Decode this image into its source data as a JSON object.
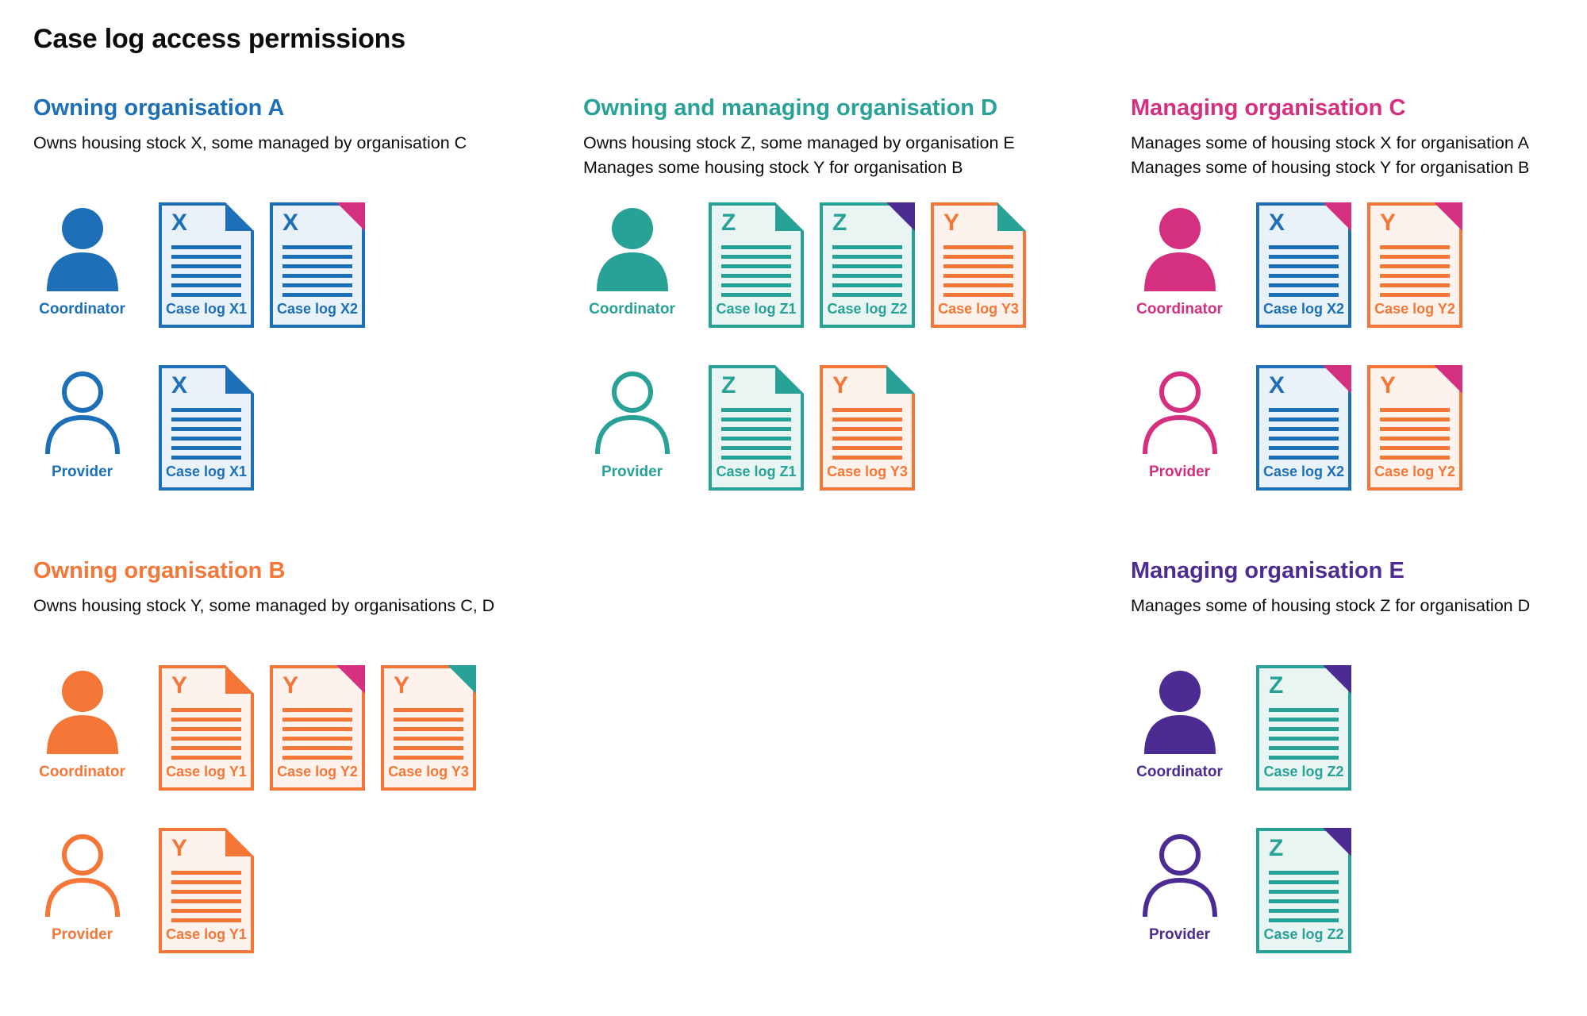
{
  "title": "Case log access permissions",
  "colors": {
    "text": "#0b0c0c",
    "blue": "#1d70b8",
    "teal": "#28a197",
    "pink": "#d5307f",
    "orange": "#f47738",
    "purple": "#4c2c92"
  },
  "tints": {
    "blue": "#eaf2f9",
    "teal": "#e9f5f3",
    "orange": "#fef3ec"
  },
  "persona_labels": {
    "coordinator": "Coordinator",
    "provider": "Provider"
  },
  "sections": [
    {
      "id": "owning-organisation-a",
      "heading": "Owning organisation A",
      "color": "blue",
      "band": 1,
      "col": 1,
      "description": [
        "Owns housing stock X, some managed by organisation C"
      ],
      "rows": [
        {
          "persona": {
            "label": "Coordinator",
            "style": "filled"
          },
          "docs": [
            {
              "letter": "X",
              "label": "Case log X1",
              "doc_color": "blue",
              "corner_color": "blue",
              "corner_style": "fold"
            },
            {
              "letter": "X",
              "label": "Case log X2",
              "doc_color": "blue",
              "corner_color": "pink",
              "corner_style": "solid"
            }
          ]
        },
        {
          "persona": {
            "label": "Provider",
            "style": "outline"
          },
          "docs": [
            {
              "letter": "X",
              "label": "Case log X1",
              "doc_color": "blue",
              "corner_color": "blue",
              "corner_style": "fold"
            }
          ]
        }
      ]
    },
    {
      "id": "owning-and-managing-organisation-d",
      "heading": "Owning and managing organisation D",
      "color": "teal",
      "band": 1,
      "col": 2,
      "description": [
        "Owns housing stock Z, some managed by organisation E",
        "Manages some housing stock Y for organisation B"
      ],
      "rows": [
        {
          "persona": {
            "label": "Coordinator",
            "style": "filled"
          },
          "docs": [
            {
              "letter": "Z",
              "label": "Case log Z1",
              "doc_color": "teal",
              "corner_color": "teal",
              "corner_style": "fold"
            },
            {
              "letter": "Z",
              "label": "Case log Z2",
              "doc_color": "teal",
              "corner_color": "purple",
              "corner_style": "solid"
            },
            {
              "letter": "Y",
              "label": "Case log Y3",
              "doc_color": "orange",
              "corner_color": "teal",
              "corner_style": "fold"
            }
          ]
        },
        {
          "persona": {
            "label": "Provider",
            "style": "outline"
          },
          "docs": [
            {
              "letter": "Z",
              "label": "Case log Z1",
              "doc_color": "teal",
              "corner_color": "teal",
              "corner_style": "fold"
            },
            {
              "letter": "Y",
              "label": "Case log Y3",
              "doc_color": "orange",
              "corner_color": "teal",
              "corner_style": "fold"
            }
          ]
        }
      ]
    },
    {
      "id": "managing-organisation-c",
      "heading": "Managing organisation C",
      "color": "pink",
      "band": 1,
      "col": 3,
      "description": [
        "Manages some of housing stock X for organisation A",
        "Manages some of housing stock Y for organisation B"
      ],
      "rows": [
        {
          "persona": {
            "label": "Coordinator",
            "style": "filled"
          },
          "docs": [
            {
              "letter": "X",
              "label": "Case log X2",
              "doc_color": "blue",
              "corner_color": "pink",
              "corner_style": "solid"
            },
            {
              "letter": "Y",
              "label": "Case log Y2",
              "doc_color": "orange",
              "corner_color": "pink",
              "corner_style": "solid"
            }
          ]
        },
        {
          "persona": {
            "label": "Provider",
            "style": "outline"
          },
          "docs": [
            {
              "letter": "X",
              "label": "Case log X2",
              "doc_color": "blue",
              "corner_color": "pink",
              "corner_style": "solid"
            },
            {
              "letter": "Y",
              "label": "Case log Y2",
              "doc_color": "orange",
              "corner_color": "pink",
              "corner_style": "solid"
            }
          ]
        }
      ]
    },
    {
      "id": "owning-organisation-b",
      "heading": "Owning organisation B",
      "color": "orange",
      "band": 2,
      "col": 1,
      "description": [
        "Owns housing stock Y, some managed by organisations C, D"
      ],
      "rows": [
        {
          "persona": {
            "label": "Coordinator",
            "style": "filled"
          },
          "docs": [
            {
              "letter": "Y",
              "label": "Case log Y1",
              "doc_color": "orange",
              "corner_color": "orange",
              "corner_style": "fold"
            },
            {
              "letter": "Y",
              "label": "Case log Y2",
              "doc_color": "orange",
              "corner_color": "pink",
              "corner_style": "solid"
            },
            {
              "letter": "Y",
              "label": "Case log Y3",
              "doc_color": "orange",
              "corner_color": "teal",
              "corner_style": "solid"
            }
          ]
        },
        {
          "persona": {
            "label": "Provider",
            "style": "outline"
          },
          "docs": [
            {
              "letter": "Y",
              "label": "Case log Y1",
              "doc_color": "orange",
              "corner_color": "orange",
              "corner_style": "fold"
            }
          ]
        }
      ]
    },
    {
      "id": "managing-organisation-e",
      "heading": "Managing organisation E",
      "color": "purple",
      "band": 2,
      "col": 3,
      "description": [
        "Manages some of housing stock Z for organisation D"
      ],
      "rows": [
        {
          "persona": {
            "label": "Coordinator",
            "style": "filled"
          },
          "docs": [
            {
              "letter": "Z",
              "label": "Case log Z2",
              "doc_color": "teal",
              "corner_color": "purple",
              "corner_style": "solid"
            }
          ]
        },
        {
          "persona": {
            "label": "Provider",
            "style": "outline"
          },
          "docs": [
            {
              "letter": "Z",
              "label": "Case log Z2",
              "doc_color": "teal",
              "corner_color": "purple",
              "corner_style": "solid"
            }
          ]
        }
      ]
    }
  ]
}
